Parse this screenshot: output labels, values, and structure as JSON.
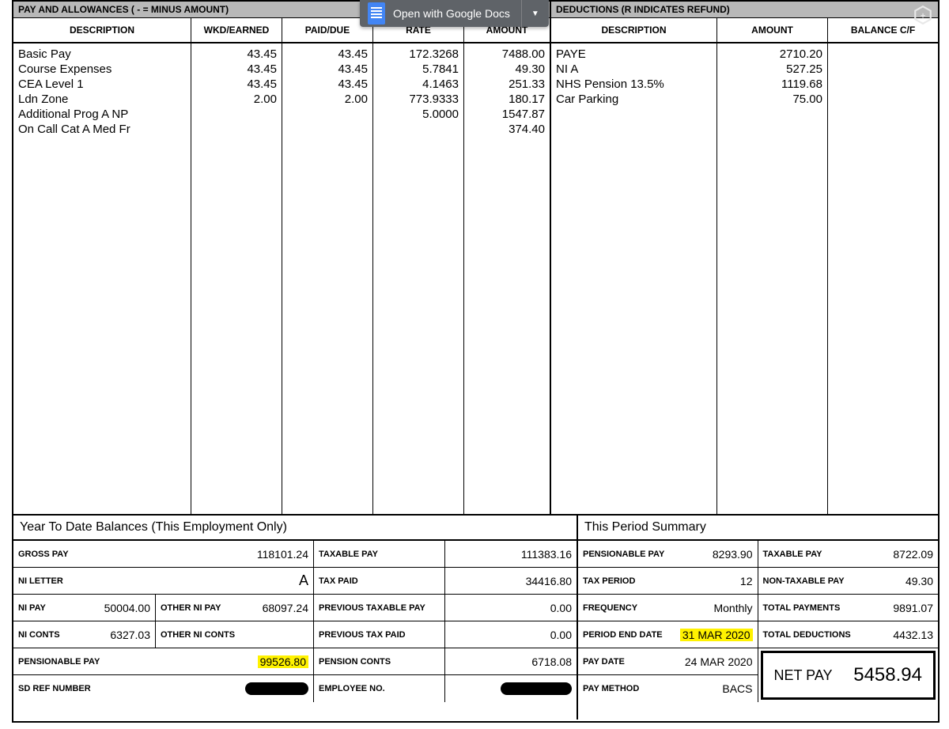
{
  "overlay": {
    "gdocs_label": "Open with Google Docs",
    "dropdown_glyph": "▼"
  },
  "headers": {
    "pay_allowances": "PAY AND ALLOWANCES ( - = MINUS AMOUNT)",
    "deductions": "DEDUCTIONS (R INDICATES REFUND)"
  },
  "pay_columns": {
    "description": "DESCRIPTION",
    "wkd": "WKD/EARNED",
    "paid": "PAID/DUE",
    "rate": "RATE",
    "amount": "AMOUNT"
  },
  "ded_columns": {
    "description": "DESCRIPTION",
    "amount": "AMOUNT",
    "balance": "BALANCE C/F"
  },
  "pay_rows": [
    {
      "desc": "Basic Pay",
      "wkd": "43.45",
      "paid": "43.45",
      "rate": "172.3268",
      "amount": "7488.00"
    },
    {
      "desc": "Course Expenses",
      "wkd": "",
      "paid": "",
      "rate": "",
      "amount": "49.30"
    },
    {
      "desc": "CEA Level 1",
      "wkd": "43.45",
      "paid": "43.45",
      "rate": "5.7841",
      "amount": "251.33"
    },
    {
      "desc": "Ldn Zone",
      "wkd": "43.45",
      "paid": "43.45",
      "rate": "4.1463",
      "amount": "180.17"
    },
    {
      "desc": "Additional Prog A NP",
      "wkd": "2.00",
      "paid": "2.00",
      "rate": "773.9333",
      "amount": "1547.87"
    },
    {
      "desc": "On Call Cat A Med Fr",
      "wkd": "",
      "paid": "",
      "rate": "5.0000",
      "amount": "374.40"
    }
  ],
  "ded_rows": [
    {
      "desc": "PAYE",
      "amount": "2710.20",
      "balance": ""
    },
    {
      "desc": "NI A",
      "amount": "527.25",
      "balance": ""
    },
    {
      "desc": "NHS Pension 13.5%",
      "amount": "1119.68",
      "balance": ""
    },
    {
      "desc": "Car Parking",
      "amount": "75.00",
      "balance": ""
    }
  ],
  "ytd": {
    "title": "Year To Date Balances (This Employment Only)",
    "gross_pay_lbl": "GROSS PAY",
    "gross_pay": "118101.24",
    "taxable_pay_lbl": "TAXABLE PAY",
    "taxable_pay": "111383.16",
    "ni_letter_lbl": "NI LETTER",
    "ni_letter": "A",
    "tax_paid_lbl": "TAX PAID",
    "tax_paid": "34416.80",
    "ni_pay_lbl": "NI PAY",
    "ni_pay": "50004.00",
    "other_ni_pay_lbl": "OTHER NI PAY",
    "other_ni_pay": "68097.24",
    "prev_tax_pay_lbl": "PREVIOUS TAXABLE PAY",
    "prev_tax_pay": "0.00",
    "ni_conts_lbl": "NI CONTS",
    "ni_conts": "6327.03",
    "other_ni_conts_lbl": "OTHER NI CONTS",
    "other_ni_conts": "",
    "prev_tax_paid_lbl": "PREVIOUS TAX PAID",
    "prev_tax_paid": "0.00",
    "pens_pay_lbl": "PENSIONABLE PAY",
    "pens_pay": "99526.80",
    "pens_conts_lbl": "PENSION CONTS",
    "pens_conts": "6718.08",
    "sd_ref_lbl": "SD REF NUMBER",
    "emp_no_lbl": "EMPLOYEE NO."
  },
  "period": {
    "title": "This Period Summary",
    "pens_pay_lbl": "PENSIONABLE PAY",
    "pens_pay": "8293.90",
    "taxable_pay_lbl": "TAXABLE PAY",
    "taxable_pay": "8722.09",
    "tax_period_lbl": "TAX PERIOD",
    "tax_period": "12",
    "non_tax_pay_lbl": "NON-TAXABLE PAY",
    "non_tax_pay": "49.30",
    "frequency_lbl": "FREQUENCY",
    "frequency": "Monthly",
    "total_payments_lbl": "TOTAL PAYMENTS",
    "total_payments": "9891.07",
    "period_end_lbl": "PERIOD END DATE",
    "period_end": "31 MAR 2020",
    "total_ded_lbl": "TOTAL DEDUCTIONS",
    "total_ded": "4432.13",
    "pay_date_lbl": "PAY DATE",
    "pay_date": "24 MAR 2020",
    "net_pay_lbl": "NET PAY",
    "net_pay": "5458.94",
    "pay_method_lbl": "PAY METHOD",
    "pay_method": "BACS"
  },
  "colors": {
    "header_bg": "#b8b8b8",
    "highlight": "#fff200",
    "border": "#000000",
    "gdocs_bg": "#5f6368",
    "gdocs_icon": "#4285f4"
  }
}
